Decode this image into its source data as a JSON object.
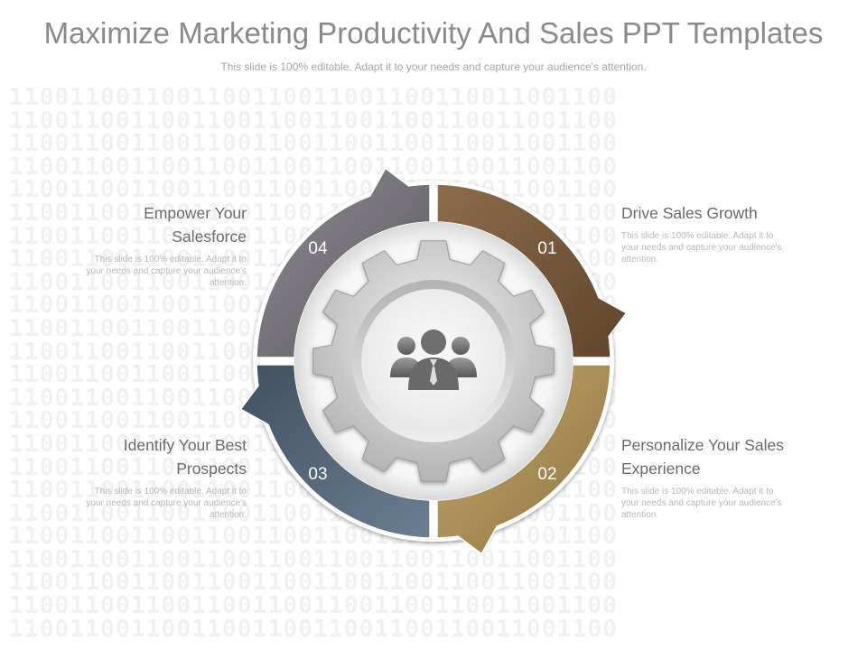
{
  "slide": {
    "title": "Maximize Marketing Productivity And Sales PPT Templates",
    "subtitle": "This slide is 100% editable. Adapt it to your needs and capture your audience's attention.",
    "background_pattern": "1100110011001100110011001100110011001100"
  },
  "center": {
    "icon": "team-people-icon"
  },
  "segments": [
    {
      "number": "01",
      "heading": "Drive Sales Growth",
      "description": "This slide is 100% editable. Adapt it to your needs and capture your audience's attention.",
      "color": "#7a5c3e"
    },
    {
      "number": "02",
      "heading": "Personalize Your Sales Experience",
      "description": "This slide is 100% editable. Adapt it to your needs and capture your audience's attention.",
      "color": "#b09458"
    },
    {
      "number": "03",
      "heading": "Identify Your Best Prospects",
      "description": "This slide is 100% editable. Adapt it to your needs and capture your audience's attention.",
      "color": "#4e6275"
    },
    {
      "number": "04",
      "heading": "Empower Your Salesforce",
      "description": "This slide is 100% editable. Adapt it to your needs and capture your audience's attention.",
      "color": "#7c7880"
    }
  ]
}
